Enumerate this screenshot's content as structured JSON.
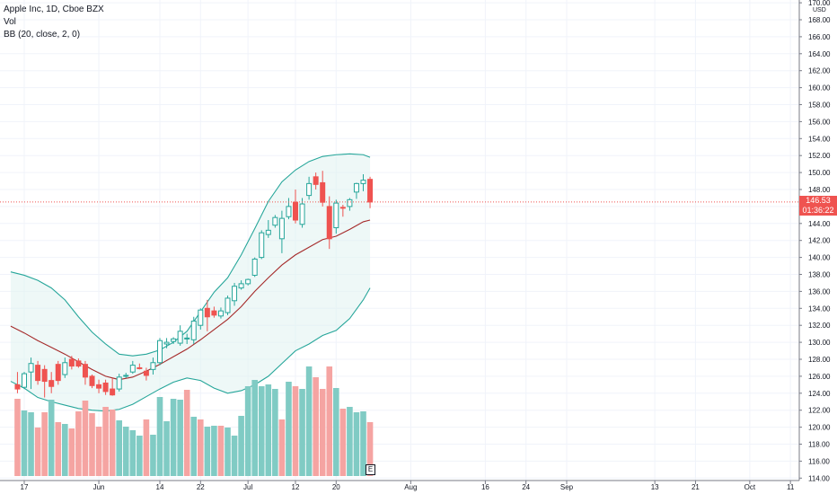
{
  "legend": {
    "symbol": "Apple Inc, 1D, Cboe BZX",
    "volume_label": "Vol",
    "indicator": "BB (20, close, 2, 0)"
  },
  "price_axis": {
    "labels": [
      "170.00",
      "168.00",
      "166.00",
      "164.00",
      "162.00",
      "160.00",
      "158.00",
      "156.00",
      "154.00",
      "152.00",
      "150.00",
      "148.00",
      "146.00",
      "144.00",
      "142.00",
      "140.00",
      "138.00",
      "136.00",
      "134.00",
      "132.00",
      "130.00",
      "128.00",
      "126.00",
      "124.00",
      "122.00",
      "120.00",
      "118.00",
      "116.00",
      "114.00"
    ],
    "currency": "USD"
  },
  "last_price": {
    "value": "146.53",
    "countdown": "01:36:22"
  },
  "earnings_marker": "E",
  "colors": {
    "up": "#26a69a",
    "down": "#ef5350",
    "bb_band": "#26a69a",
    "bb_basis": "#a52a2a",
    "bb_fill": "#e0f2f1",
    "vol_up": "#80cbc4",
    "vol_down": "#f5a4a2"
  },
  "chart_data": {
    "type": "candlestick",
    "title": "Apple Inc, 1D, Cboe BZX",
    "ylim": [
      114,
      170
    ],
    "x_ticks": [
      {
        "label": "17",
        "day": 0
      },
      {
        "label": "Jun",
        "day": 11
      },
      {
        "label": "14",
        "day": 20
      },
      {
        "label": "22",
        "day": 26
      },
      {
        "label": "Jul",
        "day": 33
      },
      {
        "label": "12",
        "day": 40
      },
      {
        "label": "20",
        "day": 46
      },
      {
        "label": "Aug",
        "day": 57
      },
      {
        "label": "16",
        "day": 68
      },
      {
        "label": "24",
        "day": 74
      },
      {
        "label": "Sep",
        "day": 80
      },
      {
        "label": "13",
        "day": 93
      },
      {
        "label": "21",
        "day": 99
      },
      {
        "label": "Oct",
        "day": 107
      },
      {
        "label": "11",
        "day": 113
      }
    ],
    "candles": [
      {
        "day": -1,
        "open": 125.0,
        "high": 126.5,
        "low": 124.0,
        "close": 124.5
      },
      {
        "day": 0,
        "open": 124.7,
        "high": 126.5,
        "low": 124.5,
        "close": 126.3
      },
      {
        "day": 1,
        "open": 126.5,
        "high": 128.2,
        "low": 124.5,
        "close": 127.5
      },
      {
        "day": 2,
        "open": 127.3,
        "high": 127.8,
        "low": 125.0,
        "close": 125.5
      },
      {
        "day": 3,
        "open": 126.8,
        "high": 127.3,
        "low": 123.5,
        "close": 125.4
      },
      {
        "day": 4,
        "open": 125.5,
        "high": 126.5,
        "low": 124.0,
        "close": 124.8
      },
      {
        "day": 5,
        "open": 127.4,
        "high": 127.8,
        "low": 125.0,
        "close": 125.5
      },
      {
        "day": 6,
        "open": 126.2,
        "high": 128.2,
        "low": 125.8,
        "close": 127.6
      },
      {
        "day": 7,
        "open": 128.0,
        "high": 128.4,
        "low": 126.8,
        "close": 127.2
      },
      {
        "day": 8,
        "open": 127.8,
        "high": 128.1,
        "low": 127.0,
        "close": 127.2
      },
      {
        "day": 9,
        "open": 127.4,
        "high": 127.8,
        "low": 125.0,
        "close": 125.9
      },
      {
        "day": 10,
        "open": 126.0,
        "high": 126.2,
        "low": 124.6,
        "close": 124.9
      },
      {
        "day": 11,
        "open": 125.0,
        "high": 125.6,
        "low": 124.0,
        "close": 124.6
      },
      {
        "day": 12,
        "open": 125.2,
        "high": 125.6,
        "low": 123.8,
        "close": 124.2
      },
      {
        "day": 13,
        "open": 124.5,
        "high": 125.8,
        "low": 123.7,
        "close": 123.8
      },
      {
        "day": 14,
        "open": 124.5,
        "high": 126.3,
        "low": 124.2,
        "close": 125.9
      },
      {
        "day": 15,
        "open": 126.0,
        "high": 126.4,
        "low": 125.8,
        "close": 126.1
      },
      {
        "day": 16,
        "open": 126.5,
        "high": 127.8,
        "low": 126.3,
        "close": 127.3
      },
      {
        "day": 17,
        "open": 127.0,
        "high": 127.5,
        "low": 126.8,
        "close": 126.9
      },
      {
        "day": 18,
        "open": 126.6,
        "high": 127.0,
        "low": 125.5,
        "close": 126.1
      },
      {
        "day": 19,
        "open": 126.8,
        "high": 128.2,
        "low": 126.2,
        "close": 127.6
      },
      {
        "day": 20,
        "open": 127.6,
        "high": 130.5,
        "low": 127.3,
        "close": 130.2
      },
      {
        "day": 21,
        "open": 129.8,
        "high": 130.5,
        "low": 129.3,
        "close": 130.0
      },
      {
        "day": 22,
        "open": 130.1,
        "high": 130.6,
        "low": 129.8,
        "close": 130.4
      },
      {
        "day": 23,
        "open": 129.9,
        "high": 132.0,
        "low": 129.6,
        "close": 131.3
      },
      {
        "day": 24,
        "open": 130.4,
        "high": 131.0,
        "low": 129.8,
        "close": 130.5
      },
      {
        "day": 25,
        "open": 130.3,
        "high": 133.0,
        "low": 129.8,
        "close": 132.5
      },
      {
        "day": 26,
        "open": 132.0,
        "high": 134.0,
        "low": 131.5,
        "close": 133.8
      },
      {
        "day": 27,
        "open": 134.0,
        "high": 135.0,
        "low": 131.3,
        "close": 133.0
      },
      {
        "day": 28,
        "open": 133.7,
        "high": 134.2,
        "low": 132.9,
        "close": 133.2
      },
      {
        "day": 29,
        "open": 133.1,
        "high": 134.1,
        "low": 132.8,
        "close": 133.7
      },
      {
        "day": 30,
        "open": 133.5,
        "high": 135.5,
        "low": 133.2,
        "close": 135.2
      },
      {
        "day": 31,
        "open": 134.9,
        "high": 137.0,
        "low": 134.3,
        "close": 136.6
      },
      {
        "day": 32,
        "open": 136.4,
        "high": 137.3,
        "low": 136.2,
        "close": 136.9
      },
      {
        "day": 33,
        "open": 136.9,
        "high": 137.5,
        "low": 136.7,
        "close": 137.4
      },
      {
        "day": 34,
        "open": 137.9,
        "high": 140.0,
        "low": 137.7,
        "close": 139.8
      },
      {
        "day": 35,
        "open": 140.0,
        "high": 143.2,
        "low": 139.8,
        "close": 142.9
      },
      {
        "day": 36,
        "open": 142.7,
        "high": 144.4,
        "low": 142.3,
        "close": 143.2
      },
      {
        "day": 37,
        "open": 143.8,
        "high": 145.0,
        "low": 143.5,
        "close": 144.7
      },
      {
        "day": 38,
        "open": 142.2,
        "high": 145.5,
        "low": 140.5,
        "close": 144.6
      },
      {
        "day": 39,
        "open": 144.8,
        "high": 147.0,
        "low": 144.5,
        "close": 146.0
      },
      {
        "day": 40,
        "open": 146.5,
        "high": 148.0,
        "low": 144.0,
        "close": 144.4
      },
      {
        "day": 41,
        "open": 143.9,
        "high": 147.0,
        "low": 143.5,
        "close": 146.3
      },
      {
        "day": 42,
        "open": 147.3,
        "high": 149.5,
        "low": 146.8,
        "close": 148.7
      },
      {
        "day": 43,
        "open": 149.5,
        "high": 150.0,
        "low": 148.0,
        "close": 148.6
      },
      {
        "day": 44,
        "open": 148.8,
        "high": 150.2,
        "low": 146.0,
        "close": 146.5
      },
      {
        "day": 45,
        "open": 146.0,
        "high": 147.2,
        "low": 141.0,
        "close": 142.2
      },
      {
        "day": 46,
        "open": 143.5,
        "high": 146.8,
        "low": 142.8,
        "close": 146.4
      },
      {
        "day": 47,
        "open": 145.9,
        "high": 146.2,
        "low": 144.8,
        "close": 145.8
      },
      {
        "day": 48,
        "open": 146.0,
        "high": 147.0,
        "low": 145.5,
        "close": 146.8
      },
      {
        "day": 49,
        "open": 147.7,
        "high": 148.8,
        "low": 146.9,
        "close": 148.7
      },
      {
        "day": 50,
        "open": 148.7,
        "high": 149.8,
        "low": 147.8,
        "close": 149.1
      },
      {
        "day": 51,
        "open": 149.2,
        "high": 149.5,
        "low": 145.8,
        "close": 146.53
      }
    ],
    "volume": [
      {
        "day": -1,
        "height": 0.86,
        "dir": "down"
      },
      {
        "day": 0,
        "height": 0.73,
        "dir": "up"
      },
      {
        "day": 1,
        "height": 0.71,
        "dir": "up"
      },
      {
        "day": 2,
        "height": 0.54,
        "dir": "down"
      },
      {
        "day": 3,
        "height": 0.71,
        "dir": "down"
      },
      {
        "day": 4,
        "height": 0.85,
        "dir": "up"
      },
      {
        "day": 5,
        "height": 0.6,
        "dir": "down"
      },
      {
        "day": 6,
        "height": 0.58,
        "dir": "up"
      },
      {
        "day": 7,
        "height": 0.53,
        "dir": "down"
      },
      {
        "day": 8,
        "height": 0.72,
        "dir": "down"
      },
      {
        "day": 9,
        "height": 0.84,
        "dir": "down"
      },
      {
        "day": 10,
        "height": 0.7,
        "dir": "down"
      },
      {
        "day": 11,
        "height": 0.55,
        "dir": "down"
      },
      {
        "day": 12,
        "height": 0.77,
        "dir": "down"
      },
      {
        "day": 13,
        "height": 0.74,
        "dir": "down"
      },
      {
        "day": 14,
        "height": 0.62,
        "dir": "up"
      },
      {
        "day": 15,
        "height": 0.55,
        "dir": "up"
      },
      {
        "day": 16,
        "height": 0.51,
        "dir": "up"
      },
      {
        "day": 17,
        "height": 0.45,
        "dir": "up"
      },
      {
        "day": 18,
        "height": 0.63,
        "dir": "down"
      },
      {
        "day": 19,
        "height": 0.46,
        "dir": "up"
      },
      {
        "day": 20,
        "height": 0.88,
        "dir": "up"
      },
      {
        "day": 21,
        "height": 0.61,
        "dir": "up"
      },
      {
        "day": 22,
        "height": 0.86,
        "dir": "up"
      },
      {
        "day": 23,
        "height": 0.85,
        "dir": "up"
      },
      {
        "day": 24,
        "height": 0.96,
        "dir": "down"
      },
      {
        "day": 25,
        "height": 0.66,
        "dir": "up"
      },
      {
        "day": 26,
        "height": 0.63,
        "dir": "down"
      },
      {
        "day": 27,
        "height": 0.55,
        "dir": "up"
      },
      {
        "day": 28,
        "height": 0.56,
        "dir": "up"
      },
      {
        "day": 29,
        "height": 0.56,
        "dir": "down"
      },
      {
        "day": 30,
        "height": 0.54,
        "dir": "up"
      },
      {
        "day": 31,
        "height": 0.45,
        "dir": "up"
      },
      {
        "day": 32,
        "height": 0.67,
        "dir": "up"
      },
      {
        "day": 33,
        "height": 1.0,
        "dir": "up"
      },
      {
        "day": 34,
        "height": 1.07,
        "dir": "up"
      },
      {
        "day": 35,
        "height": 1.0,
        "dir": "up"
      },
      {
        "day": 36,
        "height": 1.02,
        "dir": "up"
      },
      {
        "day": 37,
        "height": 0.97,
        "dir": "up"
      },
      {
        "day": 38,
        "height": 0.63,
        "dir": "down"
      },
      {
        "day": 39,
        "height": 1.05,
        "dir": "up"
      },
      {
        "day": 40,
        "height": 1.0,
        "dir": "down"
      },
      {
        "day": 41,
        "height": 0.97,
        "dir": "up"
      },
      {
        "day": 42,
        "height": 1.22,
        "dir": "up"
      },
      {
        "day": 43,
        "height": 1.1,
        "dir": "down"
      },
      {
        "day": 44,
        "height": 0.97,
        "dir": "down"
      },
      {
        "day": 45,
        "height": 1.22,
        "dir": "down"
      },
      {
        "day": 46,
        "height": 0.98,
        "dir": "up"
      },
      {
        "day": 47,
        "height": 0.75,
        "dir": "down"
      },
      {
        "day": 48,
        "height": 0.77,
        "dir": "up"
      },
      {
        "day": 49,
        "height": 0.71,
        "dir": "up"
      },
      {
        "day": 50,
        "height": 0.72,
        "dir": "up"
      },
      {
        "day": 51,
        "height": 0.6,
        "dir": "down"
      }
    ],
    "bollinger": {
      "upper": [
        [
          -2,
          138.3
        ],
        [
          0,
          137.9
        ],
        [
          2,
          137.3
        ],
        [
          4,
          136.4
        ],
        [
          6,
          135.0
        ],
        [
          8,
          133.0
        ],
        [
          10,
          131.2
        ],
        [
          12,
          129.8
        ],
        [
          14,
          128.6
        ],
        [
          16,
          128.4
        ],
        [
          18,
          128.6
        ],
        [
          20,
          129.1
        ],
        [
          22,
          130.0
        ],
        [
          24,
          131.3
        ],
        [
          26,
          133.6
        ],
        [
          28,
          135.9
        ],
        [
          30,
          137.6
        ],
        [
          32,
          140.3
        ],
        [
          34,
          143.4
        ],
        [
          36,
          146.6
        ],
        [
          38,
          148.9
        ],
        [
          40,
          150.3
        ],
        [
          42,
          151.3
        ],
        [
          44,
          151.9
        ],
        [
          46,
          152.1
        ],
        [
          48,
          152.2
        ],
        [
          50,
          152.1
        ],
        [
          51,
          151.8
        ]
      ],
      "basis": [
        [
          -2,
          131.9
        ],
        [
          0,
          131.1
        ],
        [
          2,
          130.2
        ],
        [
          4,
          129.4
        ],
        [
          6,
          128.6
        ],
        [
          8,
          127.7
        ],
        [
          10,
          126.8
        ],
        [
          12,
          126.0
        ],
        [
          14,
          125.6
        ],
        [
          16,
          125.9
        ],
        [
          18,
          126.6
        ],
        [
          20,
          127.4
        ],
        [
          22,
          128.3
        ],
        [
          24,
          129.2
        ],
        [
          26,
          130.3
        ],
        [
          28,
          131.5
        ],
        [
          30,
          132.7
        ],
        [
          32,
          134.2
        ],
        [
          34,
          136.0
        ],
        [
          36,
          137.6
        ],
        [
          38,
          139.1
        ],
        [
          40,
          140.3
        ],
        [
          42,
          141.2
        ],
        [
          44,
          142.1
        ],
        [
          46,
          142.5
        ],
        [
          48,
          143.3
        ],
        [
          50,
          144.2
        ],
        [
          51,
          144.4
        ]
      ],
      "lower": [
        [
          -2,
          125.4
        ],
        [
          0,
          124.6
        ],
        [
          2,
          123.5
        ],
        [
          4,
          123.0
        ],
        [
          6,
          122.6
        ],
        [
          8,
          122.2
        ],
        [
          10,
          122.0
        ],
        [
          12,
          121.9
        ],
        [
          14,
          122.1
        ],
        [
          16,
          122.7
        ],
        [
          18,
          123.6
        ],
        [
          20,
          124.5
        ],
        [
          22,
          125.3
        ],
        [
          24,
          125.8
        ],
        [
          26,
          125.5
        ],
        [
          28,
          124.6
        ],
        [
          30,
          124.0
        ],
        [
          32,
          124.3
        ],
        [
          34,
          125.0
        ],
        [
          36,
          126.0
        ],
        [
          38,
          127.5
        ],
        [
          40,
          129.0
        ],
        [
          42,
          129.8
        ],
        [
          44,
          130.8
        ],
        [
          46,
          131.4
        ],
        [
          48,
          132.8
        ],
        [
          50,
          135.0
        ],
        [
          51,
          136.4
        ]
      ]
    }
  }
}
